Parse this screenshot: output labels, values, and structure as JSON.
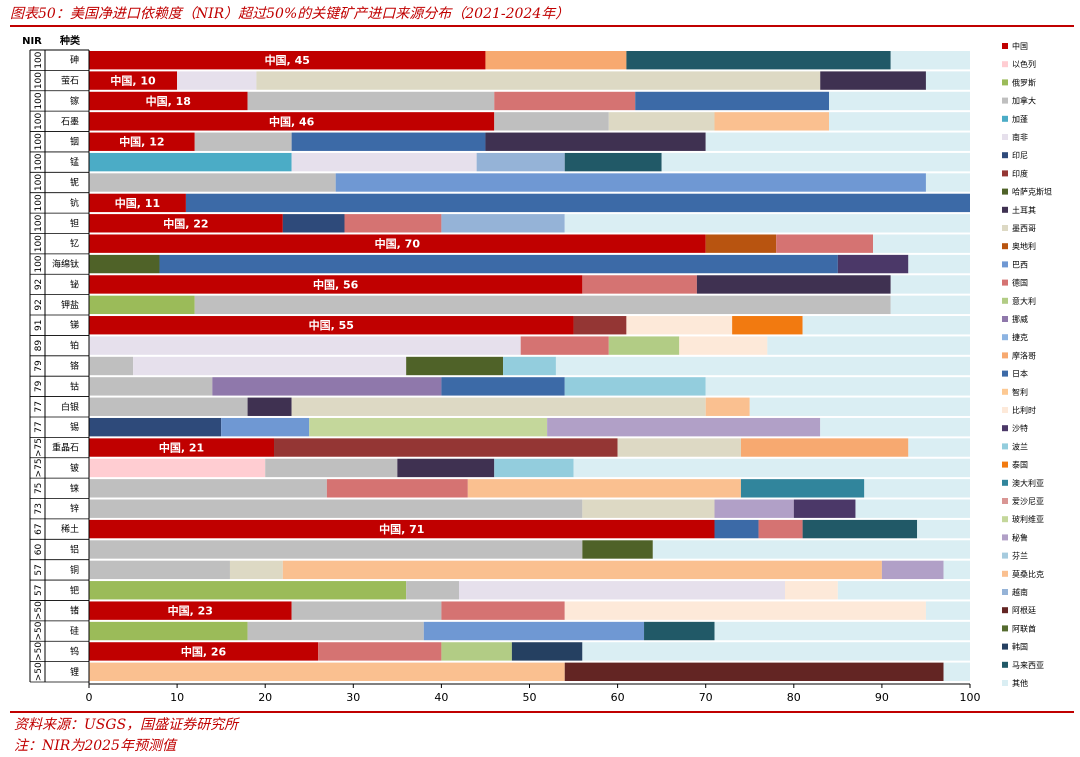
{
  "title": "图表50：美国净进口依赖度（NIR）超过50%的关键矿产进口来源分布（2021-2024年）",
  "source": "资料来源：USGS，国盛证券研究所",
  "note": "注：NIR为2025年预测值",
  "chart_data": {
    "type": "bar",
    "orientation": "horizontal",
    "stacked": true,
    "header_nir": "NIR",
    "header_category": "种类",
    "xlim": [
      0,
      100
    ],
    "xticks": [
      "0",
      "10",
      "20",
      "30",
      "40",
      "50",
      "60",
      "70",
      "80",
      "90",
      "100"
    ],
    "grid": false,
    "legend_position": "right",
    "legend": [
      {
        "name": "中国",
        "color": "#C00000"
      },
      {
        "name": "以色列",
        "color": "#FFCDD2"
      },
      {
        "name": "俄罗斯",
        "color": "#9BBB59"
      },
      {
        "name": "加拿大",
        "color": "#BFBFBF"
      },
      {
        "name": "加蓬",
        "color": "#4BACC6"
      },
      {
        "name": "南非",
        "color": "#E6E0EC"
      },
      {
        "name": "印尼",
        "color": "#2E4A7A"
      },
      {
        "name": "印度",
        "color": "#943634"
      },
      {
        "name": "哈萨克斯坦",
        "color": "#4F6228"
      },
      {
        "name": "土耳其",
        "color": "#3F3151"
      },
      {
        "name": "墨西哥",
        "color": "#DDD9C4"
      },
      {
        "name": "奥地利",
        "color": "#B85410"
      },
      {
        "name": "巴西",
        "color": "#6F98D3"
      },
      {
        "name": "德国",
        "color": "#D57372"
      },
      {
        "name": "意大利",
        "color": "#B2CC85"
      },
      {
        "name": "挪威",
        "color": "#8F78AB"
      },
      {
        "name": "捷克",
        "color": "#8DB4E2"
      },
      {
        "name": "摩洛哥",
        "color": "#F7A970"
      },
      {
        "name": "日本",
        "color": "#3C6AA7"
      },
      {
        "name": "智利",
        "color": "#FDC993"
      },
      {
        "name": "比利时",
        "color": "#FDE9D9"
      },
      {
        "name": "沙特",
        "color": "#4B3868"
      },
      {
        "name": "波兰",
        "color": "#93CDDD"
      },
      {
        "name": "泰国",
        "color": "#F27A10"
      },
      {
        "name": "澳大利亚",
        "color": "#31859C"
      },
      {
        "name": "爱沙尼亚",
        "color": "#D99694"
      },
      {
        "name": "玻利维亚",
        "color": "#C4D79B"
      },
      {
        "name": "秘鲁",
        "color": "#B1A0C7"
      },
      {
        "name": "芬兰",
        "color": "#A6CBDE"
      },
      {
        "name": "莫桑比克",
        "color": "#FAC090"
      },
      {
        "name": "越南",
        "color": "#95B3D7"
      },
      {
        "name": "阿根廷",
        "color": "#632523"
      },
      {
        "name": "阿联酋",
        "color": "#556B2F"
      },
      {
        "name": "韩国",
        "color": "#254061"
      },
      {
        "name": "马来西亚",
        "color": "#215967"
      },
      {
        "name": "其他",
        "color": "#DAEEF3"
      }
    ],
    "rows": [
      {
        "nir": "100",
        "mineral": "砷",
        "segments": [
          {
            "c": "中国",
            "v": 45,
            "label": "中国, 45"
          },
          {
            "c": "摩洛哥",
            "v": 16
          },
          {
            "c": "马来西亚",
            "v": 30
          },
          {
            "c": "其他",
            "v": 9
          }
        ]
      },
      {
        "nir": "100",
        "mineral": "萤石",
        "segments": [
          {
            "c": "中国",
            "v": 10,
            "label": "中国, 10"
          },
          {
            "c": "南非",
            "v": 9
          },
          {
            "c": "墨西哥",
            "v": 64
          },
          {
            "c": "土耳其",
            "v": 12
          },
          {
            "c": "其他",
            "v": 5
          }
        ]
      },
      {
        "nir": "100",
        "mineral": "镓",
        "segments": [
          {
            "c": "中国",
            "v": 18,
            "label": "中国, 18"
          },
          {
            "c": "加拿大",
            "v": 28
          },
          {
            "c": "德国",
            "v": 16
          },
          {
            "c": "日本",
            "v": 22
          },
          {
            "c": "其他",
            "v": 16
          }
        ]
      },
      {
        "nir": "100",
        "mineral": "石墨",
        "segments": [
          {
            "c": "中国",
            "v": 46,
            "label": "中国, 46"
          },
          {
            "c": "加拿大",
            "v": 13
          },
          {
            "c": "墨西哥",
            "v": 12
          },
          {
            "c": "莫桑比克",
            "v": 13
          },
          {
            "c": "其他",
            "v": 16
          }
        ]
      },
      {
        "nir": "100",
        "mineral": "铟",
        "segments": [
          {
            "c": "中国",
            "v": 12,
            "label": "中国, 12"
          },
          {
            "c": "加拿大",
            "v": 11
          },
          {
            "c": "日本",
            "v": 22
          },
          {
            "c": "土耳其",
            "v": 25
          },
          {
            "c": "其他",
            "v": 30
          }
        ]
      },
      {
        "nir": "100",
        "mineral": "锰",
        "segments": [
          {
            "c": "加蓬",
            "v": 23
          },
          {
            "c": "南非",
            "v": 21
          },
          {
            "c": "越南",
            "v": 10
          },
          {
            "c": "马来西亚",
            "v": 11
          },
          {
            "c": "其他",
            "v": 35
          }
        ]
      },
      {
        "nir": "100",
        "mineral": "铌",
        "segments": [
          {
            "c": "加拿大",
            "v": 28
          },
          {
            "c": "巴西",
            "v": 67
          },
          {
            "c": "其他",
            "v": 5
          }
        ]
      },
      {
        "nir": "100",
        "mineral": "钪",
        "segments": [
          {
            "c": "中国",
            "v": 11,
            "label": "中国, 11"
          },
          {
            "c": "日本",
            "v": 89
          }
        ]
      },
      {
        "nir": "100",
        "mineral": "钽",
        "segments": [
          {
            "c": "中国",
            "v": 22,
            "label": "中国, 22"
          },
          {
            "c": "印尼",
            "v": 7
          },
          {
            "c": "德国",
            "v": 11
          },
          {
            "c": "越南",
            "v": 14
          },
          {
            "c": "其他",
            "v": 46
          }
        ]
      },
      {
        "nir": "100",
        "mineral": "钇",
        "segments": [
          {
            "c": "中国",
            "v": 70,
            "label": "中国, 70"
          },
          {
            "c": "奥地利",
            "v": 8
          },
          {
            "c": "德国",
            "v": 11
          },
          {
            "c": "其他",
            "v": 11
          }
        ]
      },
      {
        "nir": "100",
        "mineral": "海绵钛",
        "segments": [
          {
            "c": "哈萨克斯坦",
            "v": 8
          },
          {
            "c": "日本",
            "v": 77
          },
          {
            "c": "沙特",
            "v": 8
          },
          {
            "c": "其他",
            "v": 7
          }
        ]
      },
      {
        "nir": "92",
        "mineral": "铋",
        "segments": [
          {
            "c": "中国",
            "v": 56,
            "label": "中国, 56"
          },
          {
            "c": "德国",
            "v": 13
          },
          {
            "c": "土耳其",
            "v": 22
          },
          {
            "c": "其他",
            "v": 9
          }
        ]
      },
      {
        "nir": "92",
        "mineral": "钾盐",
        "segments": [
          {
            "c": "俄罗斯",
            "v": 12
          },
          {
            "c": "加拿大",
            "v": 79
          },
          {
            "c": "其他",
            "v": 9
          }
        ]
      },
      {
        "nir": "91",
        "mineral": "锑",
        "segments": [
          {
            "c": "中国",
            "v": 55,
            "label": "中国, 55"
          },
          {
            "c": "印度",
            "v": 6
          },
          {
            "c": "比利时",
            "v": 12
          },
          {
            "c": "泰国",
            "v": 8
          },
          {
            "c": "其他",
            "v": 19
          }
        ]
      },
      {
        "nir": "89",
        "mineral": "铂",
        "segments": [
          {
            "c": "南非",
            "v": 49
          },
          {
            "c": "德国",
            "v": 10
          },
          {
            "c": "意大利",
            "v": 8
          },
          {
            "c": "比利时",
            "v": 10
          },
          {
            "c": "其他",
            "v": 23
          }
        ]
      },
      {
        "nir": "79",
        "mineral": "铬",
        "segments": [
          {
            "c": "加拿大",
            "v": 5
          },
          {
            "c": "南非",
            "v": 31
          },
          {
            "c": "哈萨克斯坦",
            "v": 11
          },
          {
            "c": "波兰",
            "v": 6
          },
          {
            "c": "其他",
            "v": 47
          }
        ]
      },
      {
        "nir": "79",
        "mineral": "钴",
        "segments": [
          {
            "c": "加拿大",
            "v": 14
          },
          {
            "c": "挪威",
            "v": 26
          },
          {
            "c": "日本",
            "v": 14
          },
          {
            "c": "波兰",
            "v": 16
          },
          {
            "c": "其他",
            "v": 30
          }
        ]
      },
      {
        "nir": "77",
        "mineral": "白银",
        "segments": [
          {
            "c": "加拿大",
            "v": 18
          },
          {
            "c": "土耳其",
            "v": 5
          },
          {
            "c": "墨西哥",
            "v": 47
          },
          {
            "c": "莫桑比克",
            "v": 5
          },
          {
            "c": "其他",
            "v": 25
          }
        ]
      },
      {
        "nir": "77",
        "mineral": "锡",
        "segments": [
          {
            "c": "印尼",
            "v": 15
          },
          {
            "c": "巴西",
            "v": 10
          },
          {
            "c": "玻利维亚",
            "v": 27
          },
          {
            "c": "秘鲁",
            "v": 31
          },
          {
            "c": "其他",
            "v": 17
          }
        ]
      },
      {
        "nir": ">75",
        "mineral": "重晶石",
        "segments": [
          {
            "c": "中国",
            "v": 21,
            "label": "中国, 21"
          },
          {
            "c": "印度",
            "v": 39
          },
          {
            "c": "墨西哥",
            "v": 14
          },
          {
            "c": "摩洛哥",
            "v": 19
          },
          {
            "c": "其他",
            "v": 7
          }
        ]
      },
      {
        "nir": ">75",
        "mineral": "铍",
        "segments": [
          {
            "c": "以色列",
            "v": 20
          },
          {
            "c": "加拿大",
            "v": 15
          },
          {
            "c": "土耳其",
            "v": 11
          },
          {
            "c": "波兰",
            "v": 9
          },
          {
            "c": "其他",
            "v": 45
          }
        ]
      },
      {
        "nir": "75",
        "mineral": "铼",
        "segments": [
          {
            "c": "加拿大",
            "v": 27
          },
          {
            "c": "德国",
            "v": 16
          },
          {
            "c": "莫桑比克",
            "v": 31
          },
          {
            "c": "澳大利亚",
            "v": 14
          },
          {
            "c": "其他",
            "v": 12
          }
        ]
      },
      {
        "nir": "73",
        "mineral": "锌",
        "segments": [
          {
            "c": "加拿大",
            "v": 56
          },
          {
            "c": "墨西哥",
            "v": 15
          },
          {
            "c": "秘鲁",
            "v": 9
          },
          {
            "c": "沙特",
            "v": 7
          },
          {
            "c": "其他",
            "v": 13
          }
        ]
      },
      {
        "nir": "67",
        "mineral": "稀土",
        "segments": [
          {
            "c": "中国",
            "v": 71,
            "label": "中国, 71"
          },
          {
            "c": "日本",
            "v": 5
          },
          {
            "c": "德国",
            "v": 5
          },
          {
            "c": "马来西亚",
            "v": 13
          },
          {
            "c": "其他",
            "v": 6
          }
        ]
      },
      {
        "nir": "60",
        "mineral": "铝",
        "segments": [
          {
            "c": "加拿大",
            "v": 56
          },
          {
            "c": "哈萨克斯坦",
            "v": 8
          },
          {
            "c": "其他",
            "v": 36
          }
        ]
      },
      {
        "nir": "57",
        "mineral": "铜",
        "segments": [
          {
            "c": "加拿大",
            "v": 16
          },
          {
            "c": "墨西哥",
            "v": 6
          },
          {
            "c": "莫桑比克",
            "v": 68
          },
          {
            "c": "秘鲁",
            "v": 7
          },
          {
            "c": "其他",
            "v": 3
          }
        ]
      },
      {
        "nir": "57",
        "mineral": "钯",
        "segments": [
          {
            "c": "俄罗斯",
            "v": 36
          },
          {
            "c": "加拿大",
            "v": 6
          },
          {
            "c": "南非",
            "v": 37
          },
          {
            "c": "比利时",
            "v": 6
          },
          {
            "c": "其他",
            "v": 15
          }
        ]
      },
      {
        "nir": ">50",
        "mineral": "锗",
        "segments": [
          {
            "c": "中国",
            "v": 23,
            "label": "中国, 23"
          },
          {
            "c": "加拿大",
            "v": 17
          },
          {
            "c": "德国",
            "v": 14
          },
          {
            "c": "比利时",
            "v": 41
          },
          {
            "c": "其他",
            "v": 5
          }
        ]
      },
      {
        "nir": ">50",
        "mineral": "硅",
        "segments": [
          {
            "c": "俄罗斯",
            "v": 18
          },
          {
            "c": "加拿大",
            "v": 20
          },
          {
            "c": "巴西",
            "v": 25
          },
          {
            "c": "马来西亚",
            "v": 8
          },
          {
            "c": "其他",
            "v": 29
          }
        ]
      },
      {
        "nir": ">50",
        "mineral": "钨",
        "segments": [
          {
            "c": "中国",
            "v": 26,
            "label": "中国, 26"
          },
          {
            "c": "德国",
            "v": 14
          },
          {
            "c": "意大利",
            "v": 8
          },
          {
            "c": "韩国",
            "v": 8
          },
          {
            "c": "其他",
            "v": 44
          }
        ]
      },
      {
        "nir": ">50",
        "mineral": "锂",
        "segments": [
          {
            "c": "莫桑比克",
            "v": 54
          },
          {
            "c": "阿根廷",
            "v": 43
          },
          {
            "c": "其他",
            "v": 3
          }
        ]
      }
    ]
  }
}
